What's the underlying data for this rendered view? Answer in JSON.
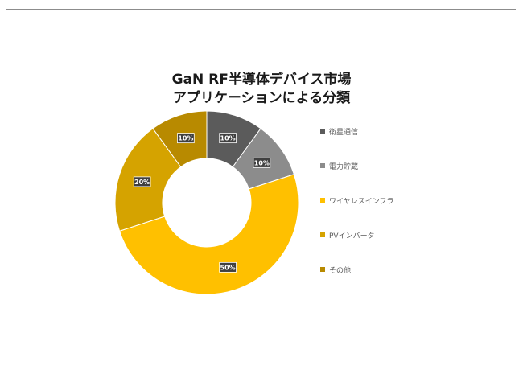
{
  "chart_data": {
    "type": "pie",
    "title_lines": [
      "GaN RF半導体デバイス市場",
      "アプリケーションによる分類"
    ],
    "categories": [
      "衛星通信",
      "電力貯蔵",
      "ワイヤレスインフラ",
      "PVインバータ",
      "その他"
    ],
    "values": [
      10,
      10,
      50,
      20,
      10
    ],
    "data_labels": [
      "10%",
      "10%",
      "50%",
      "20%",
      "10%"
    ],
    "colors": [
      "#5b5b5b",
      "#8c8c8c",
      "#ffc000",
      "#d5a300",
      "#b88a00"
    ],
    "legend_position": "right",
    "style": "donut"
  }
}
